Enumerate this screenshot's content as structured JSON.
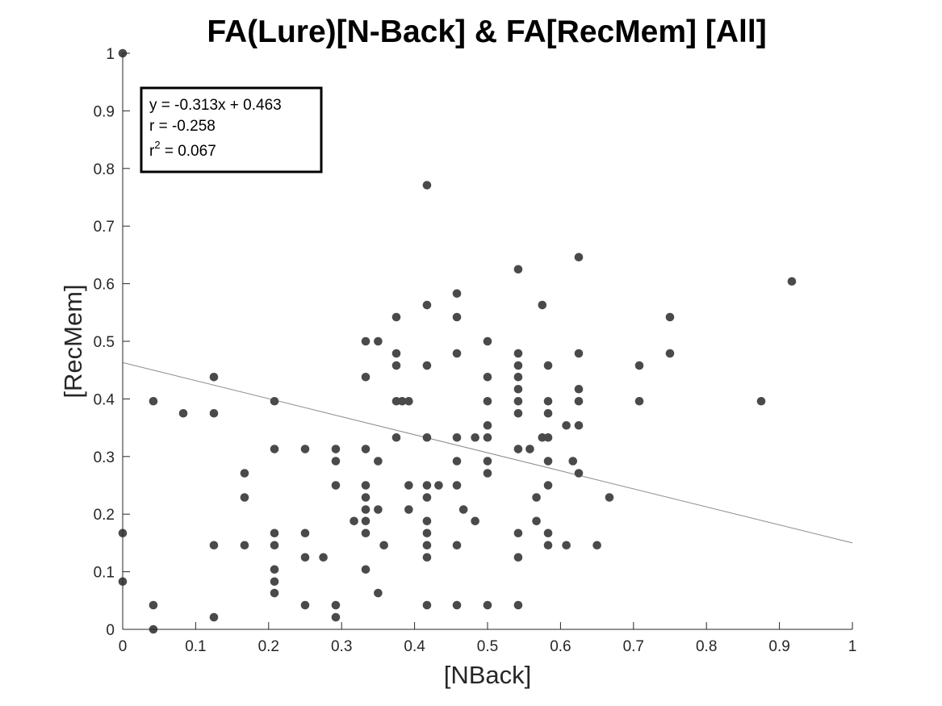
{
  "chart_data": {
    "type": "scatter",
    "title": "FA(Lure)[N-Back] & FA[RecMem] [All]",
    "xlabel": "[NBack]",
    "ylabel": "[RecMem]",
    "xlim": [
      0,
      1
    ],
    "ylim": [
      0,
      1
    ],
    "xticks": [
      0,
      0.1,
      0.2,
      0.3,
      0.4,
      0.5,
      0.6,
      0.7,
      0.8,
      0.9,
      1
    ],
    "yticks": [
      0,
      0.1,
      0.2,
      0.3,
      0.4,
      0.5,
      0.6,
      0.7,
      0.8,
      0.9,
      1
    ],
    "xtick_labels": [
      "0",
      "0.1",
      "0.2",
      "0.3",
      "0.4",
      "0.5",
      "0.6",
      "0.7",
      "0.8",
      "0.9",
      "1"
    ],
    "ytick_labels": [
      "0",
      "0.1",
      "0.2",
      "0.3",
      "0.4",
      "0.5",
      "0.6",
      "0.7",
      "0.8",
      "0.9",
      "1"
    ],
    "grid": false,
    "point_color": "#4a4a4a",
    "fit_line_color": "#8c8c8c",
    "regression": {
      "slope": -0.313,
      "intercept": 0.463
    },
    "annotation": {
      "line1": "y = -0.313x + 0.463",
      "line2": "r = -0.258",
      "line3_prefix": "r",
      "line3_sup": "2",
      "line3_suffix": " = 0.067"
    },
    "points": [
      [
        0,
        1.0
      ],
      [
        0,
        0.167
      ],
      [
        0,
        0.083
      ],
      [
        0.042,
        0.396
      ],
      [
        0.042,
        0.042
      ],
      [
        0.042,
        0.0
      ],
      [
        0.083,
        0.375
      ],
      [
        0.125,
        0.438
      ],
      [
        0.125,
        0.375
      ],
      [
        0.125,
        0.146
      ],
      [
        0.125,
        0.021
      ],
      [
        0.167,
        0.271
      ],
      [
        0.167,
        0.229
      ],
      [
        0.167,
        0.146
      ],
      [
        0.208,
        0.396
      ],
      [
        0.208,
        0.313
      ],
      [
        0.208,
        0.167
      ],
      [
        0.208,
        0.146
      ],
      [
        0.208,
        0.104
      ],
      [
        0.208,
        0.083
      ],
      [
        0.208,
        0.063
      ],
      [
        0.25,
        0.313
      ],
      [
        0.25,
        0.167
      ],
      [
        0.25,
        0.125
      ],
      [
        0.25,
        0.042
      ],
      [
        0.275,
        0.125
      ],
      [
        0.292,
        0.313
      ],
      [
        0.292,
        0.292
      ],
      [
        0.292,
        0.25
      ],
      [
        0.292,
        0.042
      ],
      [
        0.292,
        0.021
      ],
      [
        0.317,
        0.188
      ],
      [
        0.333,
        0.5
      ],
      [
        0.333,
        0.438
      ],
      [
        0.333,
        0.313
      ],
      [
        0.333,
        0.25
      ],
      [
        0.333,
        0.229
      ],
      [
        0.333,
        0.208
      ],
      [
        0.333,
        0.188
      ],
      [
        0.333,
        0.167
      ],
      [
        0.333,
        0.104
      ],
      [
        0.35,
        0.5
      ],
      [
        0.35,
        0.292
      ],
      [
        0.35,
        0.208
      ],
      [
        0.35,
        0.063
      ],
      [
        0.358,
        0.146
      ],
      [
        0.375,
        0.542
      ],
      [
        0.375,
        0.479
      ],
      [
        0.375,
        0.458
      ],
      [
        0.375,
        0.396
      ],
      [
        0.375,
        0.333
      ],
      [
        0.383,
        0.396
      ],
      [
        0.392,
        0.396
      ],
      [
        0.392,
        0.25
      ],
      [
        0.392,
        0.208
      ],
      [
        0.417,
        0.771
      ],
      [
        0.417,
        0.563
      ],
      [
        0.417,
        0.458
      ],
      [
        0.417,
        0.333
      ],
      [
        0.417,
        0.25
      ],
      [
        0.417,
        0.229
      ],
      [
        0.417,
        0.188
      ],
      [
        0.417,
        0.167
      ],
      [
        0.417,
        0.146
      ],
      [
        0.417,
        0.125
      ],
      [
        0.417,
        0.042
      ],
      [
        0.433,
        0.25
      ],
      [
        0.458,
        0.583
      ],
      [
        0.458,
        0.542
      ],
      [
        0.458,
        0.479
      ],
      [
        0.458,
        0.333
      ],
      [
        0.458,
        0.292
      ],
      [
        0.458,
        0.25
      ],
      [
        0.458,
        0.146
      ],
      [
        0.458,
        0.042
      ],
      [
        0.467,
        0.208
      ],
      [
        0.483,
        0.333
      ],
      [
        0.483,
        0.188
      ],
      [
        0.5,
        0.5
      ],
      [
        0.5,
        0.438
      ],
      [
        0.5,
        0.396
      ],
      [
        0.5,
        0.354
      ],
      [
        0.5,
        0.333
      ],
      [
        0.5,
        0.292
      ],
      [
        0.5,
        0.271
      ],
      [
        0.5,
        0.042
      ],
      [
        0.542,
        0.625
      ],
      [
        0.542,
        0.479
      ],
      [
        0.542,
        0.458
      ],
      [
        0.542,
        0.438
      ],
      [
        0.542,
        0.417
      ],
      [
        0.542,
        0.396
      ],
      [
        0.542,
        0.375
      ],
      [
        0.542,
        0.313
      ],
      [
        0.542,
        0.167
      ],
      [
        0.542,
        0.125
      ],
      [
        0.542,
        0.042
      ],
      [
        0.558,
        0.313
      ],
      [
        0.567,
        0.229
      ],
      [
        0.567,
        0.188
      ],
      [
        0.575,
        0.563
      ],
      [
        0.575,
        0.333
      ],
      [
        0.583,
        0.458
      ],
      [
        0.583,
        0.396
      ],
      [
        0.583,
        0.375
      ],
      [
        0.583,
        0.333
      ],
      [
        0.583,
        0.292
      ],
      [
        0.583,
        0.25
      ],
      [
        0.583,
        0.167
      ],
      [
        0.583,
        0.146
      ],
      [
        0.608,
        0.354
      ],
      [
        0.608,
        0.146
      ],
      [
        0.617,
        0.292
      ],
      [
        0.625,
        0.646
      ],
      [
        0.625,
        0.479
      ],
      [
        0.625,
        0.417
      ],
      [
        0.625,
        0.396
      ],
      [
        0.625,
        0.354
      ],
      [
        0.625,
        0.271
      ],
      [
        0.65,
        0.146
      ],
      [
        0.667,
        0.229
      ],
      [
        0.708,
        0.458
      ],
      [
        0.708,
        0.396
      ],
      [
        0.75,
        0.542
      ],
      [
        0.75,
        0.479
      ],
      [
        0.875,
        0.396
      ],
      [
        0.917,
        0.604
      ]
    ]
  }
}
